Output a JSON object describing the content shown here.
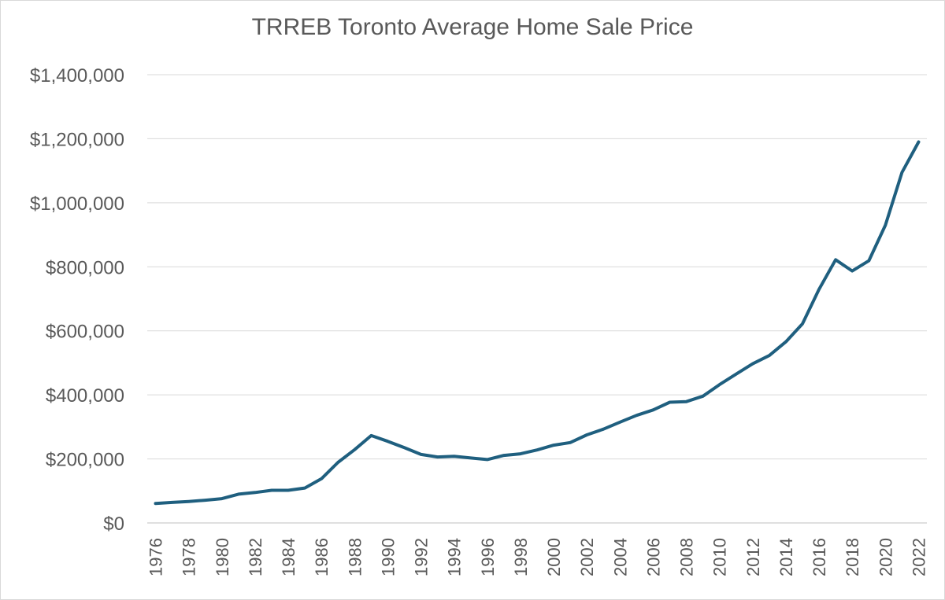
{
  "chart_data": {
    "type": "line",
    "title": "TRREB Toronto Average Home Sale Price",
    "xlabel": "",
    "ylabel": "",
    "ylim": [
      0,
      1400000
    ],
    "y_ticks": [
      0,
      200000,
      400000,
      600000,
      800000,
      1000000,
      1200000,
      1400000
    ],
    "y_tick_labels": [
      "$0",
      "$200,000",
      "$400,000",
      "$600,000",
      "$800,000",
      "$1,000,000",
      "$1,200,000",
      "$1,400,000"
    ],
    "x_tick_labels": [
      "1976",
      "1978",
      "1980",
      "1982",
      "1984",
      "1986",
      "1988",
      "1990",
      "1992",
      "1994",
      "1996",
      "1998",
      "2000",
      "2002",
      "2004",
      "2006",
      "2008",
      "2010",
      "2012",
      "2014",
      "2016",
      "2018",
      "2020",
      "2022"
    ],
    "grid": "horizontal",
    "legend": "none",
    "line_color": "#1f5f7f",
    "x": [
      1976,
      1977,
      1978,
      1979,
      1980,
      1981,
      1982,
      1983,
      1984,
      1985,
      1986,
      1987,
      1988,
      1989,
      1990,
      1991,
      1992,
      1993,
      1994,
      1995,
      1996,
      1997,
      1998,
      1999,
      2000,
      2001,
      2002,
      2003,
      2004,
      2005,
      2006,
      2007,
      2008,
      2009,
      2010,
      2011,
      2012,
      2013,
      2014,
      2015,
      2016,
      2017,
      2018,
      2019,
      2020,
      2021,
      2022
    ],
    "values": [
      61000,
      64000,
      67000,
      71000,
      76000,
      90000,
      95000,
      102000,
      102000,
      109000,
      138000,
      189000,
      229000,
      273000,
      255000,
      235000,
      214000,
      206000,
      208000,
      203000,
      198000,
      211000,
      216000,
      228000,
      243000,
      251000,
      275000,
      293000,
      315000,
      336000,
      353000,
      377000,
      379000,
      396000,
      432000,
      465000,
      497000,
      523000,
      566000,
      622000,
      730000,
      822000,
      787000,
      819000,
      930000,
      1095000,
      1190000
    ]
  }
}
